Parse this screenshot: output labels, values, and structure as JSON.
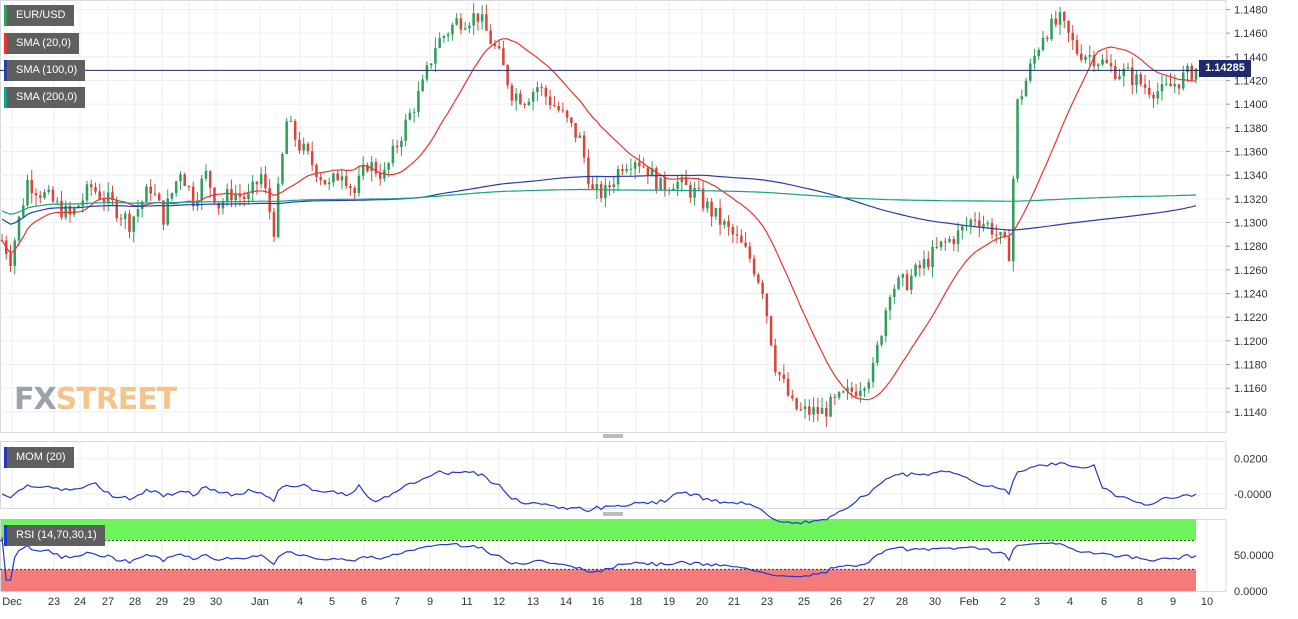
{
  "chart_data": [
    {
      "type": "candlestick",
      "symbol": "EUR/USD",
      "current_price_label": "1.14285",
      "y_ticks": [
        "1.1480",
        "1.1460",
        "1.1440",
        "1.1420",
        "1.1400",
        "1.1380",
        "1.1360",
        "1.1340",
        "1.1320",
        "1.1300",
        "1.1280",
        "1.1260",
        "1.1240",
        "1.1220",
        "1.1200",
        "1.1180",
        "1.1160",
        "1.1140"
      ],
      "ylim": [
        1.1123,
        1.1488
      ],
      "x_tick_labels": [
        "Dec",
        "23",
        "24",
        "27",
        "28",
        "29",
        "29",
        "30",
        "Jan",
        "4",
        "5",
        "6",
        "7",
        "9",
        "11",
        "12",
        "13",
        "14",
        "16",
        "18",
        "19",
        "20",
        "21",
        "23",
        "25",
        "26",
        "27",
        "28",
        "30",
        "Feb",
        "2",
        "3",
        "4",
        "6",
        "8",
        "9",
        "10"
      ],
      "indicators": [
        {
          "name": "SMA (20,0)",
          "color": "#e8352f"
        },
        {
          "name": "SMA (100,0)",
          "color": "#2b3fa8"
        },
        {
          "name": "SMA (200,0)",
          "color": "#18a08a"
        }
      ],
      "colors": {
        "up": "#2e9e5c",
        "down": "#d6463c",
        "sma20": "#e8352f",
        "sma100": "#2b3fa8",
        "sma200": "#18a08a"
      }
    },
    {
      "type": "line",
      "indicator": "MOM (20)",
      "y_ticks": [
        "0.0200",
        "-0.0000"
      ],
      "ylim": [
        -0.008,
        0.03
      ],
      "color": "#2438c8"
    },
    {
      "type": "line",
      "indicator": "RSI (14,70,30,1)",
      "y_ticks": [
        "50.0000",
        "0.0000"
      ],
      "ylim": [
        0,
        100
      ],
      "overbought": 70,
      "oversold": 30,
      "color": "#2438c8",
      "zone_colors": {
        "overbought": "#6ef55c",
        "oversold": "#f57a7a"
      }
    }
  ],
  "watermark": {
    "part1": "FX",
    "part2": "STREET"
  }
}
